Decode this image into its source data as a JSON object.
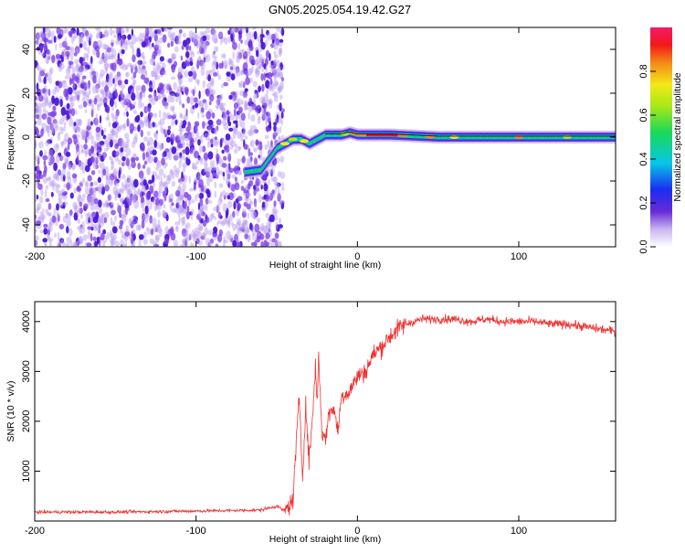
{
  "title": "GN05.2025.054.19.42.G27",
  "chart_data": [
    {
      "type": "heatmap",
      "xlabel": "Height of straight line (km)",
      "ylabel": "Frequency (Hz)",
      "xlim": [
        -200,
        160
      ],
      "ylim": [
        -50,
        50
      ],
      "xticks": [
        -200,
        -100,
        0,
        100
      ],
      "yticks": [
        -40,
        -20,
        0,
        20,
        40
      ],
      "colorbar": {
        "label": "Normalized spectral amplitude",
        "range": [
          0,
          1
        ],
        "ticks": [
          0.0,
          0.2,
          0.4,
          0.6,
          0.8
        ],
        "tick_labels": [
          "0.0",
          "0.2",
          "0.4",
          "0.6",
          "0.8"
        ]
      },
      "signal_track": {
        "x": [
          -70,
          -60,
          -55,
          -50,
          -45,
          -40,
          -35,
          -30,
          -25,
          -20,
          -10,
          -5,
          0,
          20,
          50,
          100,
          160
        ],
        "y": [
          -16,
          -15,
          -10,
          -5,
          -3,
          -1,
          -1,
          -3,
          -1,
          1,
          1,
          2,
          1,
          1,
          0,
          0,
          0
        ]
      },
      "noise_region_x": [
        -200,
        -50
      ]
    },
    {
      "type": "line",
      "xlabel": "Height of straight line (km)",
      "ylabel": "SNR (10 * v/v)",
      "xlim": [
        -200,
        160
      ],
      "ylim": [
        0,
        4400
      ],
      "xticks": [
        -200,
        -100,
        0,
        100
      ],
      "yticks": [
        1000,
        2000,
        3000,
        4000
      ],
      "series": [
        {
          "color": "#ee3333",
          "x": [
            -200,
            -150,
            -100,
            -60,
            -50,
            -45,
            -40,
            -38,
            -36,
            -34,
            -33,
            -32,
            -30,
            -28,
            -26,
            -25,
            -24,
            -22,
            -20,
            -18,
            -15,
            -12,
            -10,
            -5,
            0,
            5,
            10,
            15,
            20,
            25,
            30,
            35,
            40,
            50,
            60,
            70,
            80,
            90,
            100,
            110,
            120,
            130,
            140,
            150,
            160
          ],
          "y": [
            180,
            180,
            200,
            220,
            300,
            200,
            400,
            1500,
            2500,
            900,
            1600,
            2300,
            1200,
            2000,
            3100,
            2400,
            3300,
            1800,
            1600,
            2100,
            2300,
            1800,
            2500,
            2600,
            2900,
            3000,
            3350,
            3500,
            3700,
            3850,
            3950,
            4000,
            4050,
            4050,
            4050,
            4000,
            4050,
            4000,
            4000,
            4000,
            3950,
            3950,
            3900,
            3850,
            3800
          ]
        }
      ]
    }
  ],
  "colors": {
    "noise": "#8a4ae6",
    "snr_line": "#ee3333",
    "frame": "#000000"
  }
}
